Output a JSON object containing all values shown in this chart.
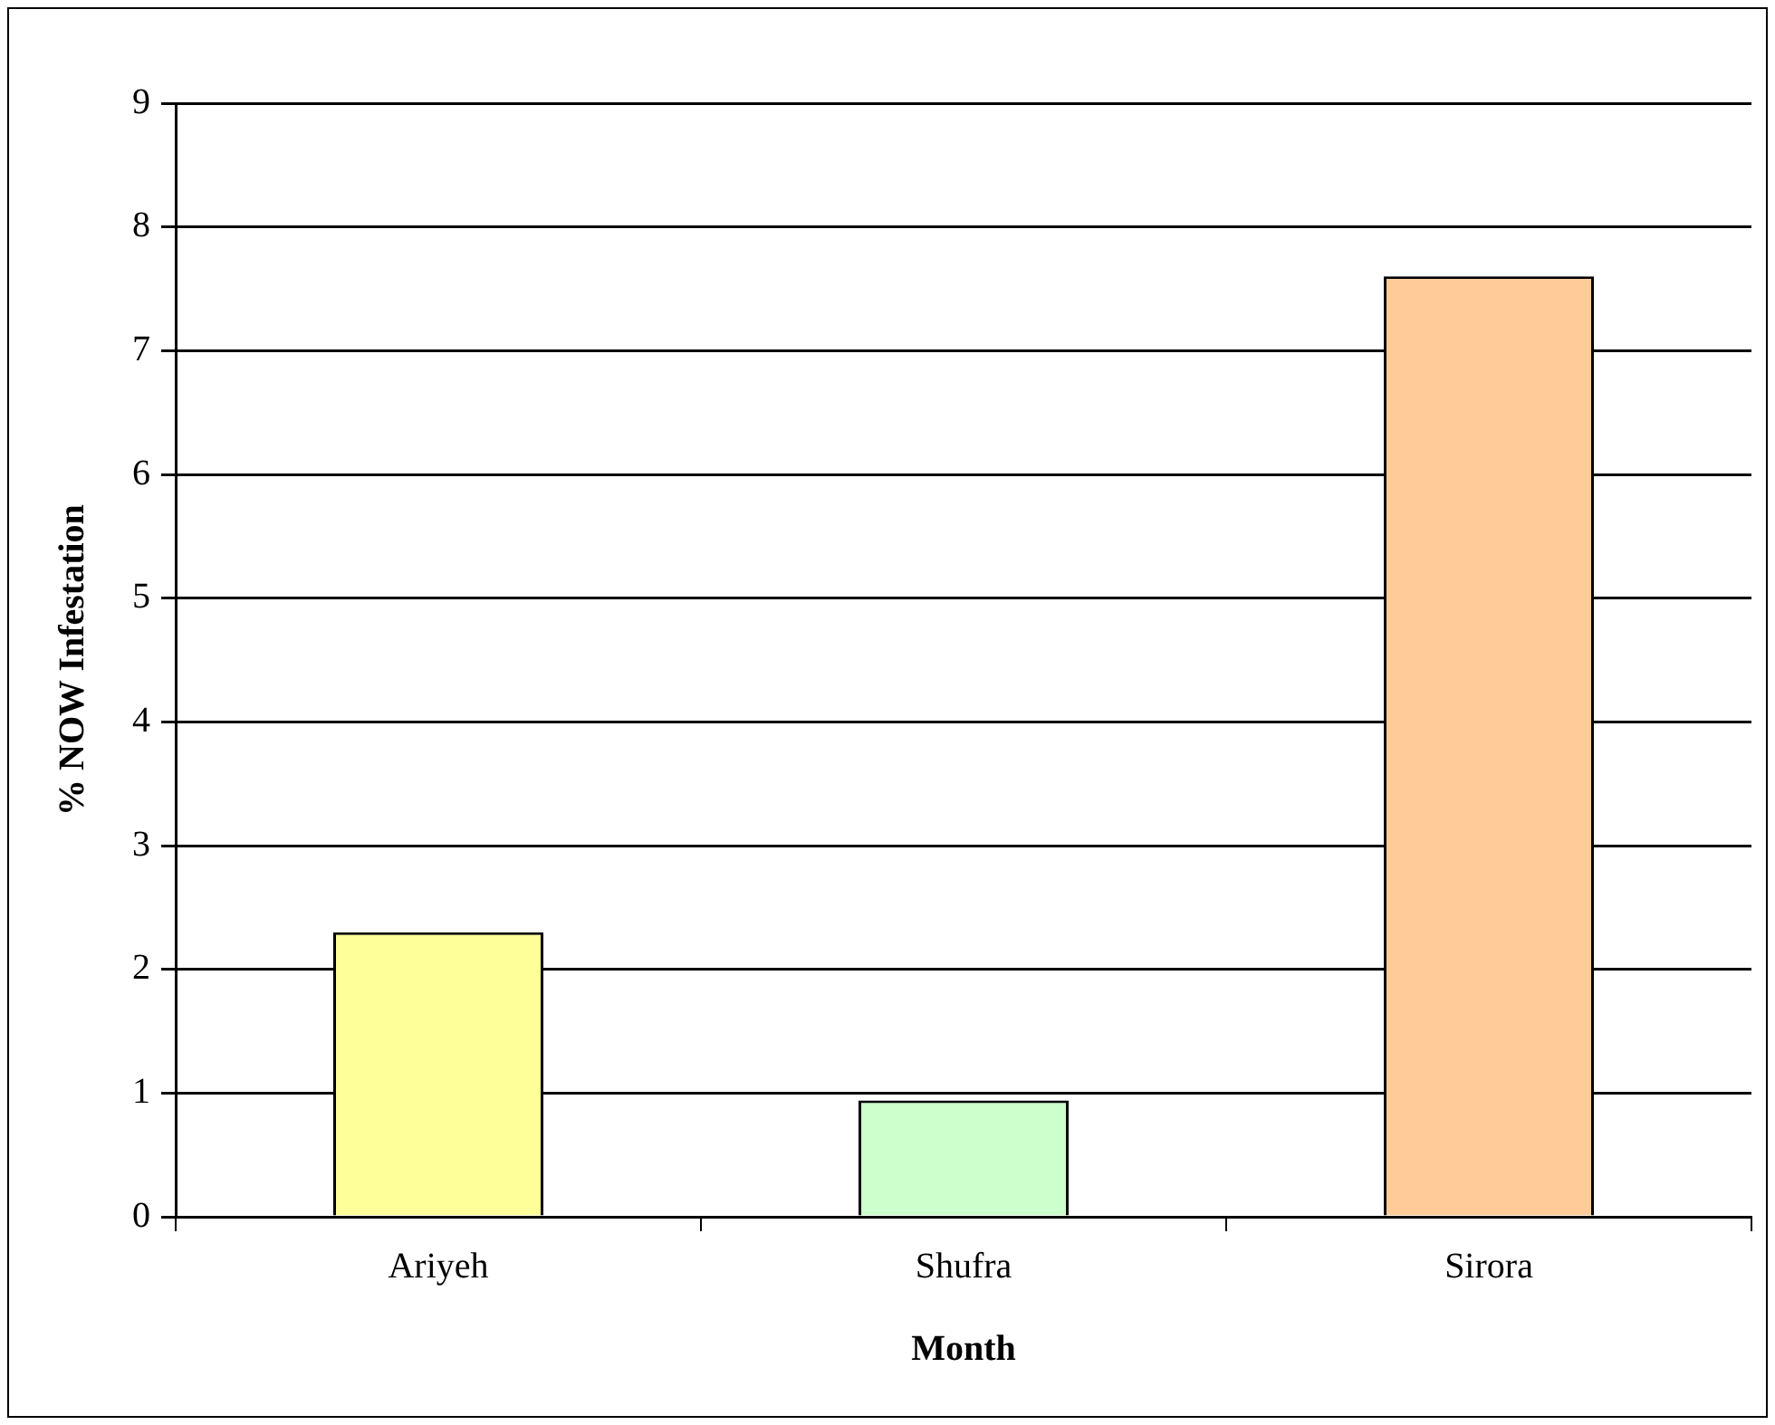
{
  "chart_data": {
    "type": "bar",
    "xlabel": "Month",
    "ylabel": "% NOW Infestation",
    "categories": [
      "Ariyeh",
      "Shufra",
      "Sirora"
    ],
    "values": [
      2.3,
      0.94,
      7.6
    ],
    "colors": [
      "#ffff99",
      "#ccffcc",
      "#ffcc99"
    ],
    "ylim": [
      0,
      9
    ],
    "yticks": [
      0,
      1,
      2,
      3,
      4,
      5,
      6,
      7,
      8,
      9
    ],
    "grid": "y",
    "legend": false
  }
}
